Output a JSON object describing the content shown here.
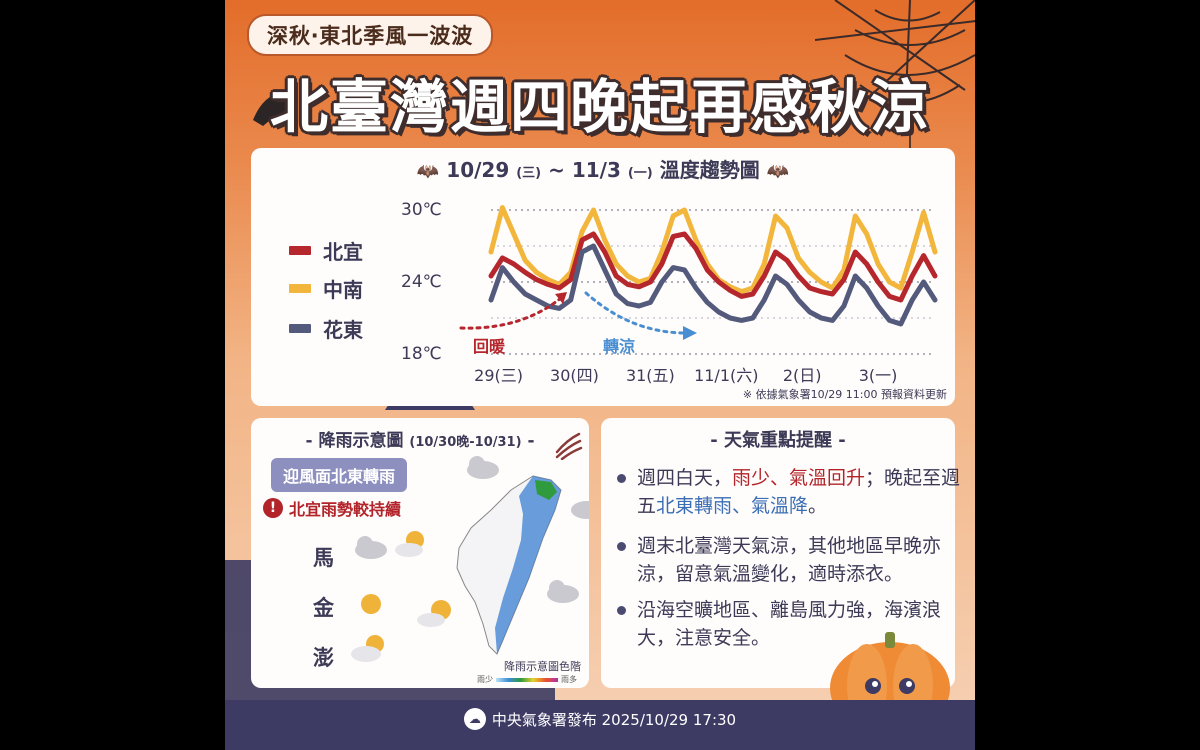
{
  "poster": {
    "tag": "深秋‧東北季風一波波",
    "headline": "北臺灣週四晚起再感秋涼"
  },
  "chart": {
    "title_main": "10/29",
    "title_wd1": "(三)",
    "title_tilde": "~",
    "title_end": "11/3",
    "title_wd2": "(一)",
    "title_suffix": "溫度趨勢圖",
    "legend": [
      "北宜",
      "中南",
      "花東"
    ],
    "annotation_warm": "回暖",
    "annotation_cool": "轉涼",
    "note": "※ 依據氣象署10/29 11:00 預報資料更新"
  },
  "chart_data": {
    "type": "line",
    "x": [
      0,
      0.15,
      0.3,
      0.45,
      0.6,
      0.75,
      0.9,
      1.05,
      1.2,
      1.35,
      1.5,
      1.65,
      1.8,
      1.95,
      2.1,
      2.25,
      2.4,
      2.55,
      2.7,
      2.85,
      3.0,
      3.15,
      3.3,
      3.45,
      3.6,
      3.75,
      3.9,
      4.05,
      4.2,
      4.35,
      4.5,
      4.65,
      4.8,
      4.95,
      5.1,
      5.25,
      5.4,
      5.55,
      5.7,
      5.85
    ],
    "categories": [
      "29(三)",
      "30(四)",
      "31(五)",
      "11/1(六)",
      "2(日)",
      "3(一)"
    ],
    "ylim": [
      18,
      30
    ],
    "yticks": [
      "18℃",
      "24℃",
      "30℃"
    ],
    "series": [
      {
        "name": "北宜",
        "color": "#b5272d",
        "values": [
          24.5,
          26.0,
          25.5,
          24.8,
          24.2,
          23.8,
          23.5,
          24.2,
          27.5,
          28.0,
          26.5,
          24.5,
          23.8,
          23.6,
          24.0,
          25.5,
          27.8,
          28.0,
          26.8,
          25.0,
          24.0,
          23.3,
          22.8,
          23.0,
          24.5,
          26.5,
          25.8,
          24.5,
          23.5,
          23.2,
          23.0,
          24.2,
          26.5,
          25.5,
          24.0,
          22.8,
          22.5,
          24.5,
          26.2,
          24.5
        ]
      },
      {
        "name": "中南",
        "color": "#f3b63c",
        "values": [
          26.5,
          30.2,
          28.0,
          25.8,
          24.8,
          24.2,
          23.8,
          24.8,
          28.2,
          30.0,
          27.5,
          25.5,
          24.5,
          24.0,
          24.3,
          26.5,
          29.5,
          30.0,
          27.5,
          25.5,
          24.2,
          23.6,
          23.2,
          23.5,
          25.5,
          29.5,
          28.5,
          26.0,
          24.8,
          24.0,
          23.5,
          25.0,
          29.5,
          28.0,
          25.5,
          24.0,
          23.5,
          26.5,
          29.8,
          26.5
        ]
      },
      {
        "name": "花東",
        "color": "#545a7c",
        "values": [
          22.5,
          25.2,
          24.0,
          23.0,
          22.5,
          22.0,
          21.8,
          22.5,
          26.5,
          27.0,
          25.0,
          23.0,
          22.2,
          22.0,
          22.3,
          24.0,
          25.2,
          25.0,
          23.5,
          22.3,
          21.5,
          21.0,
          20.8,
          21.0,
          22.5,
          24.5,
          23.8,
          22.5,
          21.5,
          21.0,
          20.8,
          22.0,
          24.5,
          23.5,
          22.0,
          20.8,
          20.5,
          22.5,
          24.0,
          22.5
        ]
      }
    ]
  },
  "rain": {
    "title_main": "- 降雨示意圖",
    "title_range": "(10/30晚-10/31)",
    "title_end": "-",
    "windward": "迎風面北東轉雨",
    "persist": "北宜雨勢較持續",
    "islands": [
      "馬",
      "金",
      "澎"
    ],
    "scale_label": "降雨示意圖色階",
    "scale_low": "雨少",
    "scale_high": "雨多"
  },
  "tips": {
    "title": "- 天氣重點提醒 -",
    "t1a": "週四白天，",
    "t1b": "雨少、氣溫回升",
    "t1c": "；晚起至週五",
    "t1d": "北東轉雨、氣溫降",
    "t1e": "。",
    "t2": "週末北臺灣天氣涼，其他地區早晚亦涼，留意氣溫變化，適時添衣。",
    "t3": "沿海空曠地區、離島風力強，海濱浪大，注意安全。"
  },
  "footer": {
    "text": "中央氣象署發布 2025/10/29 17:30"
  },
  "colors": {
    "accent": "#e36d2a",
    "navy": "#3d3b63",
    "red": "#b2242a",
    "blue": "#3b6db5"
  },
  "icons": [
    "crow-icon",
    "spider-web-icon",
    "spider-icon",
    "bat-icon",
    "cloud-rain-icon",
    "sun-cloud-icon",
    "warning-icon",
    "wind-icon",
    "cwa-logo-icon",
    "pumpkin-icon",
    "hedgehog-icon"
  ]
}
